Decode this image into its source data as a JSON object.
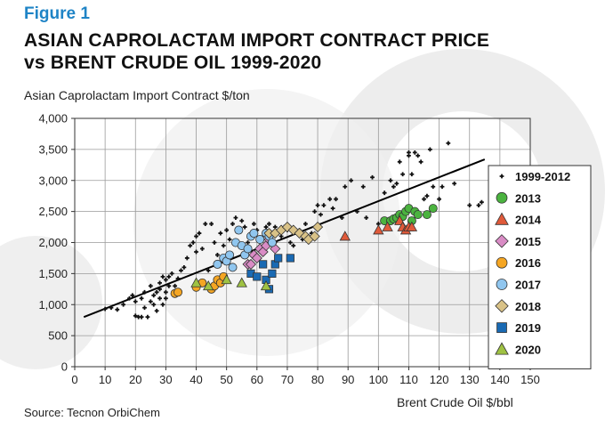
{
  "figure_label": "Figure 1",
  "title_line1": "ASIAN CAPROLACTAM IMPORT CONTRACT PRICE",
  "title_line2": "vs BRENT CRUDE OIL 1999-2020",
  "source": "Source: Tecnon OrbiChem",
  "chart_data": {
    "type": "scatter",
    "title": "ASIAN CAPROLACTAM IMPORT CONTRACT PRICE vs BRENT CRUDE OIL 1999-2020",
    "ylabel": "Asian Caprolactam Import Contract $/ton",
    "xlabel": "Brent Crude Oil $/bbl",
    "xlim": [
      0,
      150
    ],
    "ylim": [
      0,
      4000
    ],
    "x_ticks": [
      "0",
      "10",
      "20",
      "30",
      "40",
      "50",
      "60",
      "70",
      "80",
      "90",
      "100",
      "110",
      "120",
      "130",
      "140",
      "150"
    ],
    "y_ticks": [
      "0",
      "500",
      "1,000",
      "1,500",
      "2,000",
      "2,500",
      "3,000",
      "3,500",
      "4,000"
    ],
    "grid": true,
    "legend_position": "right",
    "trendline": {
      "x": [
        3,
        135
      ],
      "y": [
        800,
        3340
      ]
    },
    "series": [
      {
        "name": "1999-2012",
        "marker": "plus",
        "color": "#111111",
        "points": [
          [
            10,
            930
          ],
          [
            12,
            950
          ],
          [
            14,
            920
          ],
          [
            16,
            1000
          ],
          [
            18,
            1100
          ],
          [
            19,
            1150
          ],
          [
            20,
            1050
          ],
          [
            20,
            820
          ],
          [
            21,
            800
          ],
          [
            22,
            800
          ],
          [
            22,
            1100
          ],
          [
            23,
            1200
          ],
          [
            23,
            950
          ],
          [
            24,
            800
          ],
          [
            25,
            1050
          ],
          [
            25,
            1300
          ],
          [
            26,
            1150
          ],
          [
            26,
            1000
          ],
          [
            27,
            1200
          ],
          [
            27,
            900
          ],
          [
            28,
            1100
          ],
          [
            28,
            1350
          ],
          [
            28,
            1250
          ],
          [
            29,
            1000
          ],
          [
            29,
            1450
          ],
          [
            30,
            1200
          ],
          [
            30,
            1400
          ],
          [
            30,
            1100
          ],
          [
            31,
            1300
          ],
          [
            31,
            1450
          ],
          [
            32,
            1500
          ],
          [
            33,
            1300
          ],
          [
            34,
            1420
          ],
          [
            35,
            1550
          ],
          [
            36,
            1600
          ],
          [
            37,
            1750
          ],
          [
            38,
            1950
          ],
          [
            39,
            2000
          ],
          [
            40,
            2100
          ],
          [
            40,
            1850
          ],
          [
            41,
            2150
          ],
          [
            42,
            1900
          ],
          [
            43,
            2300
          ],
          [
            44,
            1550
          ],
          [
            45,
            2300
          ],
          [
            46,
            2000
          ],
          [
            47,
            1800
          ],
          [
            48,
            2150
          ],
          [
            49,
            1950
          ],
          [
            50,
            2200
          ],
          [
            51,
            2050
          ],
          [
            52,
            2300
          ],
          [
            53,
            2400
          ],
          [
            54,
            2200
          ],
          [
            55,
            2350
          ],
          [
            56,
            2250
          ],
          [
            57,
            2000
          ],
          [
            58,
            2150
          ],
          [
            59,
            2300
          ],
          [
            60,
            2200
          ],
          [
            61,
            1900
          ],
          [
            62,
            2100
          ],
          [
            63,
            2250
          ],
          [
            64,
            2300
          ],
          [
            65,
            2100
          ],
          [
            66,
            2250
          ],
          [
            67,
            2150
          ],
          [
            68,
            2100
          ],
          [
            69,
            2250
          ],
          [
            70,
            2200
          ],
          [
            71,
            2000
          ],
          [
            72,
            1950
          ],
          [
            74,
            2200
          ],
          [
            75,
            2050
          ],
          [
            76,
            2300
          ],
          [
            77,
            2100
          ],
          [
            78,
            2150
          ],
          [
            79,
            2500
          ],
          [
            80,
            2600
          ],
          [
            81,
            2450
          ],
          [
            82,
            2600
          ],
          [
            84,
            2700
          ],
          [
            85,
            2550
          ],
          [
            86,
            2700
          ],
          [
            88,
            2400
          ],
          [
            89,
            2900
          ],
          [
            91,
            3000
          ],
          [
            93,
            2500
          ],
          [
            95,
            2900
          ],
          [
            96,
            2400
          ],
          [
            98,
            3050
          ],
          [
            100,
            2300
          ],
          [
            102,
            2800
          ],
          [
            104,
            3000
          ],
          [
            105,
            2900
          ],
          [
            106,
            2950
          ],
          [
            107,
            3300
          ],
          [
            108,
            3100
          ],
          [
            109,
            2500
          ],
          [
            110,
            3450
          ],
          [
            110,
            3400
          ],
          [
            111,
            3100
          ],
          [
            112,
            3450
          ],
          [
            113,
            3400
          ],
          [
            114,
            3300
          ],
          [
            115,
            2700
          ],
          [
            116,
            2750
          ],
          [
            117,
            3500
          ],
          [
            118,
            2900
          ],
          [
            120,
            2700
          ],
          [
            121,
            2900
          ],
          [
            123,
            3600
          ],
          [
            125,
            2950
          ],
          [
            130,
            2600
          ],
          [
            133,
            2600
          ],
          [
            134,
            2650
          ]
        ]
      },
      {
        "name": "2013",
        "marker": "circle",
        "color": "#4bb33f",
        "points": [
          [
            102,
            2350
          ],
          [
            104,
            2350
          ],
          [
            105,
            2380
          ],
          [
            106,
            2400
          ],
          [
            107,
            2450
          ],
          [
            108,
            2420
          ],
          [
            109,
            2500
          ],
          [
            110,
            2550
          ],
          [
            111,
            2350
          ],
          [
            112,
            2500
          ],
          [
            113,
            2450
          ],
          [
            116,
            2450
          ],
          [
            118,
            2550
          ]
        ]
      },
      {
        "name": "2014",
        "marker": "triangle",
        "color": "#e05a3a",
        "points": [
          [
            89,
            2100
          ],
          [
            100,
            2200
          ],
          [
            103,
            2250
          ],
          [
            107,
            2350
          ],
          [
            108,
            2250
          ],
          [
            109,
            2200
          ],
          [
            110,
            2250
          ],
          [
            111,
            2250
          ]
        ]
      },
      {
        "name": "2015",
        "marker": "diamond",
        "color": "#d98cc5",
        "points": [
          [
            57,
            1650
          ],
          [
            58,
            1650
          ],
          [
            59,
            1800
          ],
          [
            60,
            1750
          ],
          [
            61,
            1900
          ],
          [
            62,
            1850
          ],
          [
            63,
            1950
          ],
          [
            64,
            2050
          ],
          [
            65,
            2000
          ],
          [
            66,
            1900
          ]
        ]
      },
      {
        "name": "2016",
        "marker": "circle",
        "color": "#f5a623",
        "points": [
          [
            33,
            1180
          ],
          [
            34,
            1200
          ],
          [
            40,
            1280
          ],
          [
            42,
            1350
          ],
          [
            45,
            1250
          ],
          [
            46,
            1300
          ],
          [
            47,
            1400
          ],
          [
            48,
            1350
          ],
          [
            49,
            1450
          ]
        ]
      },
      {
        "name": "2017",
        "marker": "circle",
        "color": "#90c6ef",
        "points": [
          [
            47,
            1650
          ],
          [
            49,
            1750
          ],
          [
            50,
            1700
          ],
          [
            51,
            1800
          ],
          [
            52,
            1600
          ],
          [
            53,
            2000
          ],
          [
            54,
            2200
          ],
          [
            55,
            1950
          ],
          [
            56,
            1800
          ],
          [
            57,
            1900
          ],
          [
            58,
            2100
          ],
          [
            59,
            2150
          ],
          [
            61,
            2050
          ],
          [
            63,
            2150
          ],
          [
            64,
            2100
          ],
          [
            65,
            2000
          ]
        ]
      },
      {
        "name": "2018",
        "marker": "diamond",
        "color": "#d9c287",
        "points": [
          [
            64,
            2150
          ],
          [
            66,
            2150
          ],
          [
            68,
            2200
          ],
          [
            70,
            2250
          ],
          [
            72,
            2200
          ],
          [
            74,
            2150
          ],
          [
            76,
            2100
          ],
          [
            77,
            2050
          ],
          [
            79,
            2100
          ],
          [
            80,
            2250
          ]
        ]
      },
      {
        "name": "2019",
        "marker": "square",
        "color": "#1a6ab3",
        "points": [
          [
            58,
            1500
          ],
          [
            60,
            1450
          ],
          [
            62,
            1650
          ],
          [
            63,
            1400
          ],
          [
            64,
            1250
          ],
          [
            65,
            1500
          ],
          [
            66,
            1650
          ],
          [
            67,
            1750
          ],
          [
            71,
            1750
          ]
        ]
      },
      {
        "name": "2020",
        "marker": "triangle",
        "color": "#9fc243",
        "points": [
          [
            40,
            1350
          ],
          [
            44,
            1300
          ],
          [
            50,
            1400
          ],
          [
            55,
            1350
          ],
          [
            63,
            1300
          ]
        ]
      }
    ]
  }
}
